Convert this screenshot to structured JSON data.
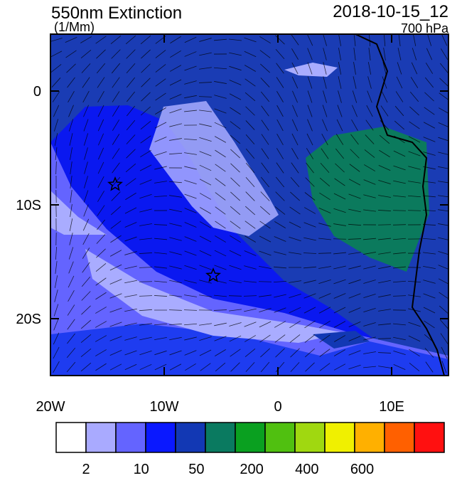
{
  "title": "550nm Extinction",
  "units": "(1/Mm)",
  "date": "2018-10-15_12",
  "level": "700 hPa",
  "map": {
    "xlim": [
      -20,
      15
    ],
    "ylim": [
      -25,
      5
    ],
    "xticks": [
      {
        "value": -20,
        "label": "20W"
      },
      {
        "value": -10,
        "label": "10W"
      },
      0,
      {
        "value": 10,
        "label": "10E"
      }
    ],
    "yticks": [
      0,
      {
        "value": -10,
        "label": "10S"
      },
      {
        "value": -20,
        "label": "20S"
      }
    ]
  },
  "colorbar": {
    "colors": [
      "#ffffff",
      "#a9aaff",
      "#6464ff",
      "#0a18ff",
      "#1238b4",
      "#0a7a60",
      "#0aa020",
      "#50c010",
      "#a0d810",
      "#f0f000",
      "#ffb000",
      "#ff6000",
      "#ff1010"
    ],
    "labels": [
      2,
      10,
      50,
      200,
      400,
      600
    ]
  }
}
